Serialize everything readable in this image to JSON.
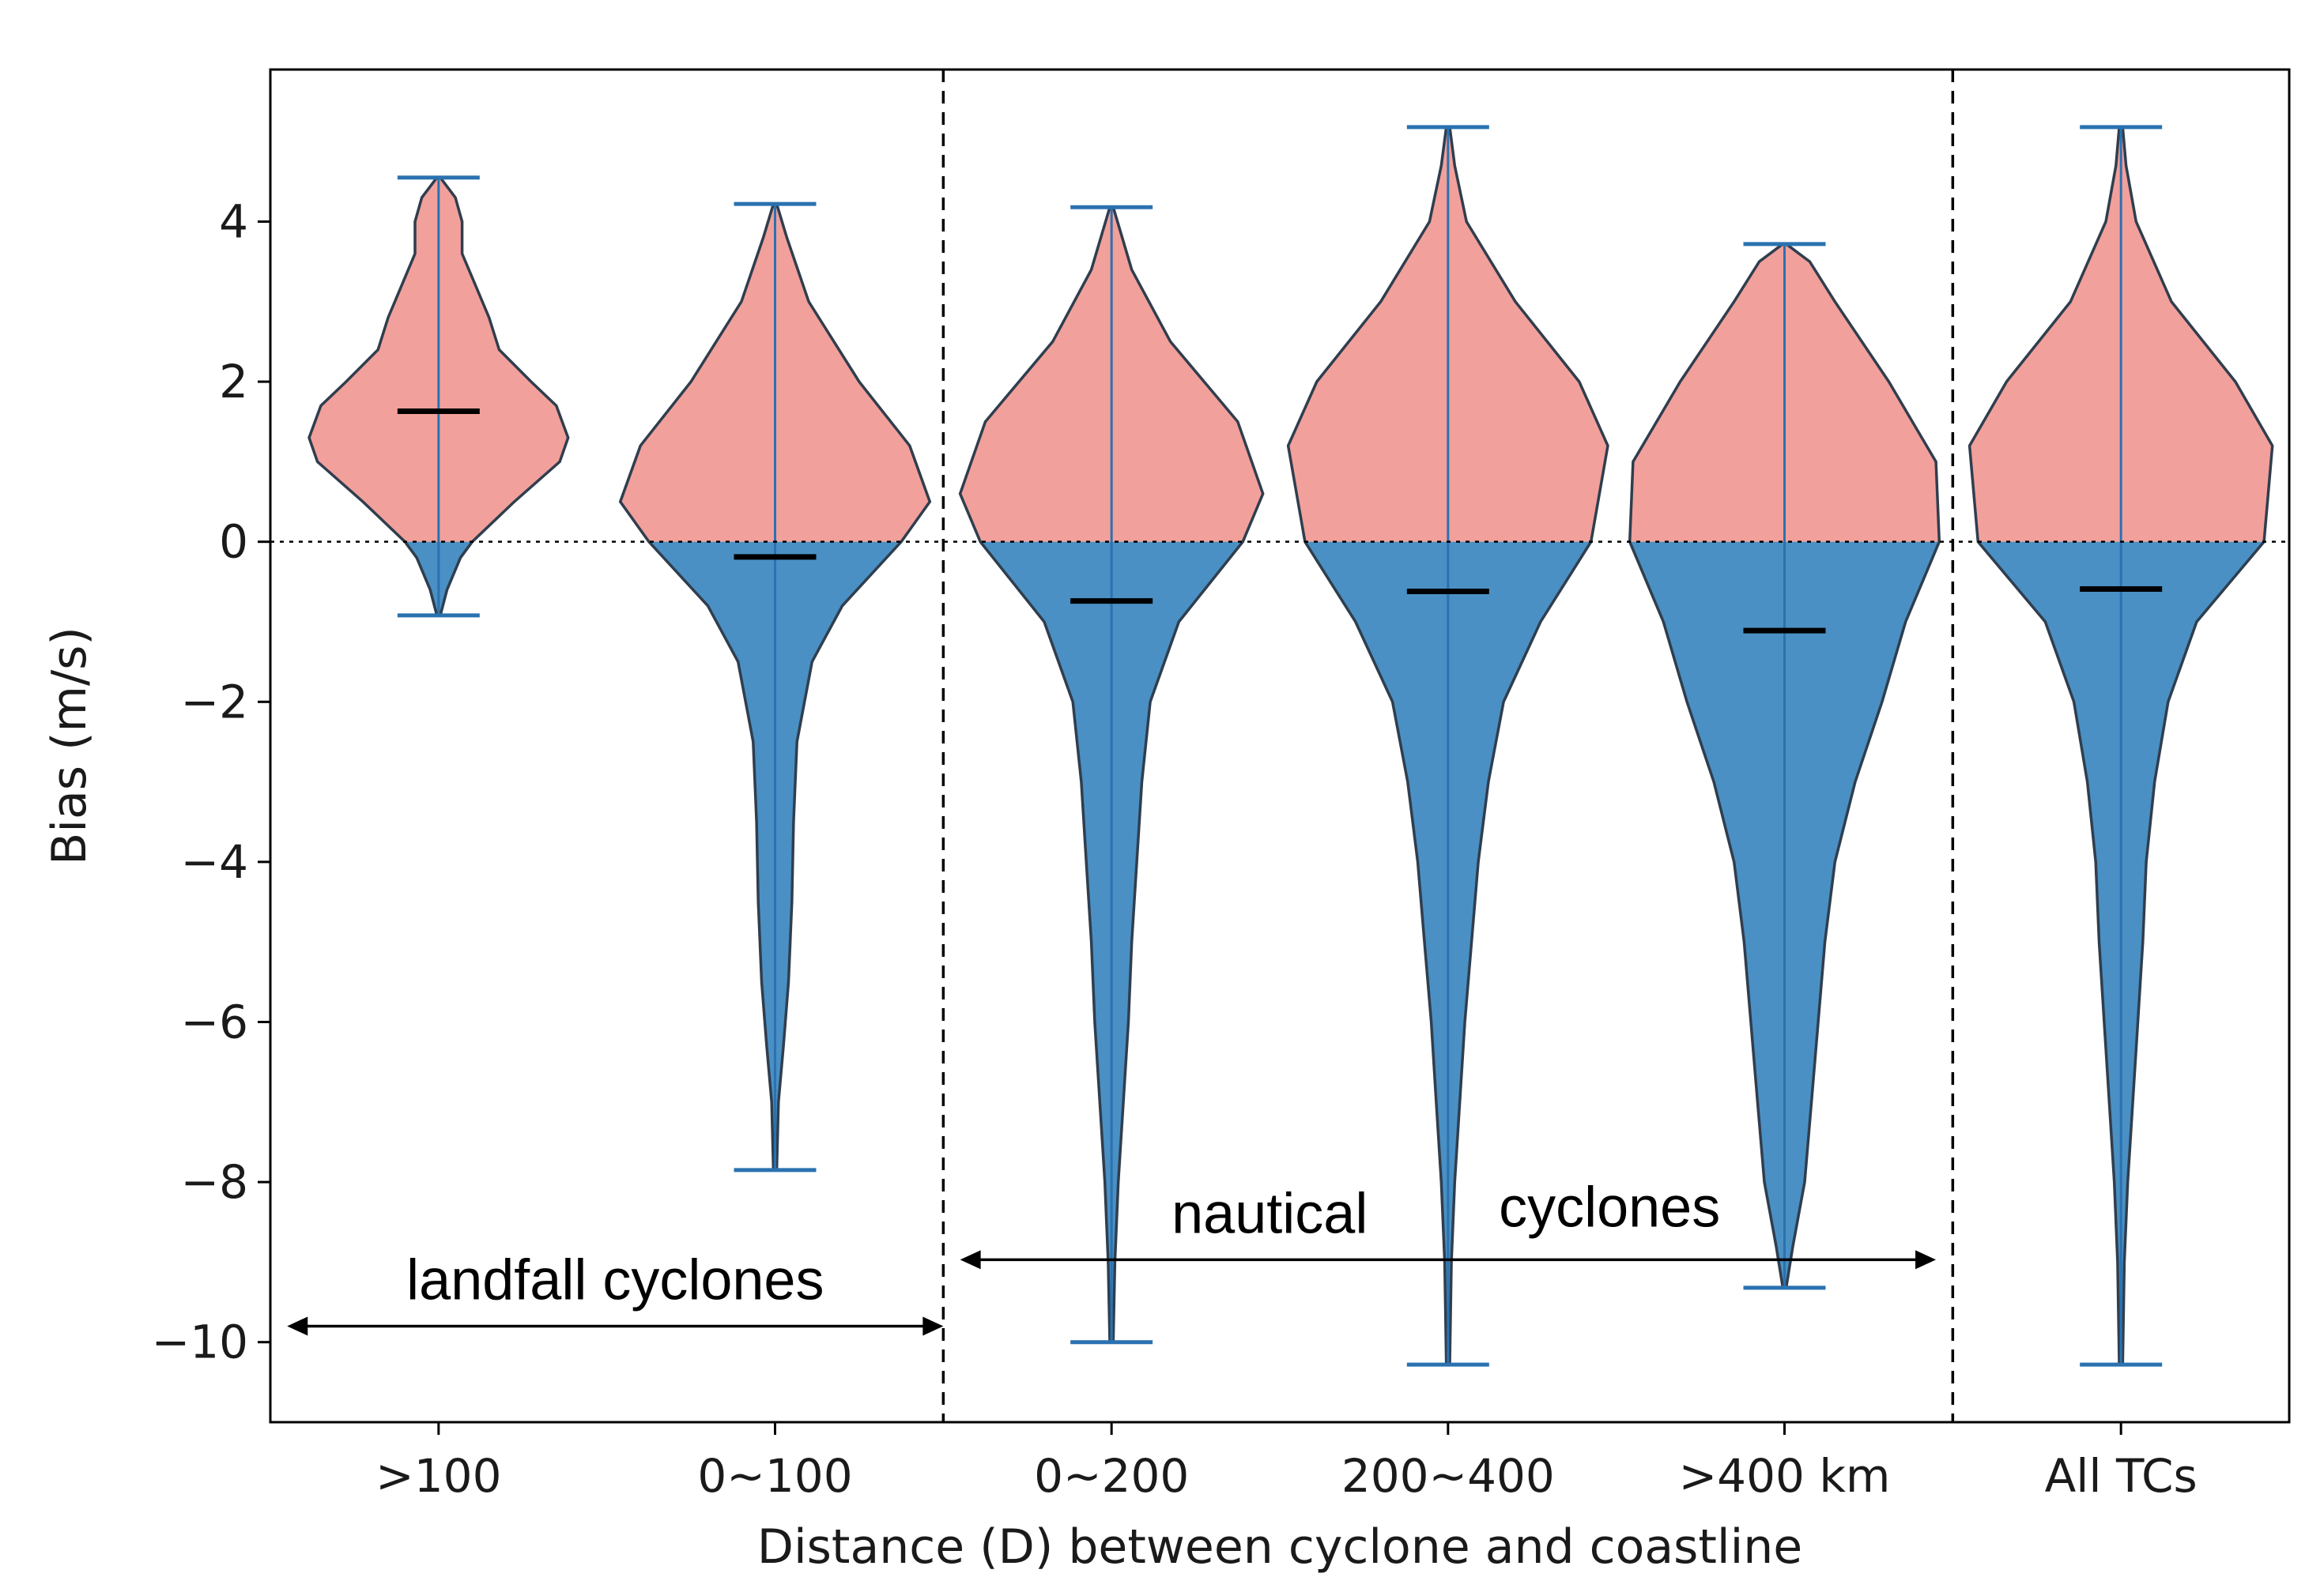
{
  "chart_data": {
    "type": "violin",
    "title": "",
    "xlabel": "Distance (D) between cyclone and coastline",
    "ylabel": "Bias (m/s)",
    "ylim": [
      -11,
      5.9
    ],
    "yticks": [
      4,
      2,
      0,
      -2,
      -4,
      -6,
      -8,
      -10
    ],
    "ytick_labels": [
      "4",
      "2",
      "0",
      "−2",
      "−4",
      "−6",
      "−8",
      "−10"
    ],
    "categories": [
      ">100",
      "0~100",
      "0~200",
      "200~400",
      ">400 km",
      "All TCs"
    ],
    "colors": {
      "positive": "#f2a09b",
      "negative": "#4a90c4",
      "edge": "#2f3e4e",
      "whisker": "#2a72b0",
      "mean": "#000000"
    },
    "violins": [
      {
        "category": ">100",
        "min": -0.92,
        "max": 4.55,
        "mean": 1.63,
        "profile": [
          [
            -0.92,
            0.01
          ],
          [
            -0.6,
            0.05
          ],
          [
            -0.2,
            0.13
          ],
          [
            0.0,
            0.2
          ],
          [
            0.5,
            0.45
          ],
          [
            1.0,
            0.72
          ],
          [
            1.3,
            0.77
          ],
          [
            1.7,
            0.7
          ],
          [
            2.0,
            0.55
          ],
          [
            2.4,
            0.36
          ],
          [
            2.8,
            0.3
          ],
          [
            3.2,
            0.22
          ],
          [
            3.6,
            0.14
          ],
          [
            4.0,
            0.14
          ],
          [
            4.3,
            0.1
          ],
          [
            4.55,
            0.01
          ]
        ]
      },
      {
        "category": "0~100",
        "min": -7.85,
        "max": 4.22,
        "mean": -0.19,
        "profile": [
          [
            -7.85,
            0.01
          ],
          [
            -7.0,
            0.02
          ],
          [
            -6.3,
            0.05
          ],
          [
            -5.5,
            0.08
          ],
          [
            -4.5,
            0.1
          ],
          [
            -3.5,
            0.11
          ],
          [
            -2.5,
            0.13
          ],
          [
            -1.5,
            0.22
          ],
          [
            -0.8,
            0.4
          ],
          [
            0.0,
            0.75
          ],
          [
            0.5,
            0.92
          ],
          [
            1.2,
            0.8
          ],
          [
            2.0,
            0.5
          ],
          [
            3.0,
            0.2
          ],
          [
            3.8,
            0.07
          ],
          [
            4.22,
            0.01
          ]
        ]
      },
      {
        "category": "0~200",
        "min": -10.0,
        "max": 4.18,
        "mean": -0.74,
        "profile": [
          [
            -10.0,
            0.01
          ],
          [
            -9.0,
            0.02
          ],
          [
            -8.0,
            0.04
          ],
          [
            -7.0,
            0.07
          ],
          [
            -6.0,
            0.1
          ],
          [
            -5.0,
            0.12
          ],
          [
            -4.0,
            0.15
          ],
          [
            -3.0,
            0.18
          ],
          [
            -2.0,
            0.23
          ],
          [
            -1.0,
            0.4
          ],
          [
            0.0,
            0.78
          ],
          [
            0.6,
            0.9
          ],
          [
            1.5,
            0.75
          ],
          [
            2.5,
            0.35
          ],
          [
            3.4,
            0.12
          ],
          [
            4.18,
            0.01
          ]
        ]
      },
      {
        "category": "200~400",
        "min": -10.28,
        "max": 5.18,
        "mean": -0.62,
        "profile": [
          [
            -10.28,
            0.01
          ],
          [
            -9.0,
            0.02
          ],
          [
            -8.0,
            0.04
          ],
          [
            -7.0,
            0.07
          ],
          [
            -6.0,
            0.1
          ],
          [
            -5.0,
            0.14
          ],
          [
            -4.0,
            0.18
          ],
          [
            -3.0,
            0.24
          ],
          [
            -2.0,
            0.33
          ],
          [
            -1.0,
            0.55
          ],
          [
            0.0,
            0.85
          ],
          [
            1.2,
            0.95
          ],
          [
            2.0,
            0.78
          ],
          [
            3.0,
            0.4
          ],
          [
            4.0,
            0.11
          ],
          [
            4.7,
            0.04
          ],
          [
            5.18,
            0.01
          ]
        ]
      },
      {
        "category": ">400 km",
        "min": -9.32,
        "max": 3.72,
        "mean": -1.11,
        "profile": [
          [
            -9.32,
            0.01
          ],
          [
            -8.8,
            0.05
          ],
          [
            -8.0,
            0.12
          ],
          [
            -7.0,
            0.16
          ],
          [
            -6.0,
            0.2
          ],
          [
            -5.0,
            0.24
          ],
          [
            -4.0,
            0.3
          ],
          [
            -3.0,
            0.42
          ],
          [
            -2.0,
            0.58
          ],
          [
            -1.0,
            0.72
          ],
          [
            0.0,
            0.92
          ],
          [
            1.0,
            0.9
          ],
          [
            2.0,
            0.62
          ],
          [
            3.0,
            0.3
          ],
          [
            3.5,
            0.15
          ],
          [
            3.72,
            0.01
          ]
        ]
      },
      {
        "category": "All TCs",
        "min": -10.28,
        "max": 5.18,
        "mean": -0.59,
        "profile": [
          [
            -10.28,
            0.01
          ],
          [
            -9.0,
            0.02
          ],
          [
            -8.0,
            0.04
          ],
          [
            -7.0,
            0.07
          ],
          [
            -6.0,
            0.1
          ],
          [
            -5.0,
            0.13
          ],
          [
            -4.0,
            0.15
          ],
          [
            -3.0,
            0.2
          ],
          [
            -2.0,
            0.28
          ],
          [
            -1.0,
            0.45
          ],
          [
            0.0,
            0.85
          ],
          [
            1.2,
            0.9
          ],
          [
            2.0,
            0.68
          ],
          [
            3.0,
            0.3
          ],
          [
            4.0,
            0.09
          ],
          [
            4.7,
            0.03
          ],
          [
            5.18,
            0.01
          ]
        ]
      }
    ],
    "reference_line": {
      "y": 0,
      "style": "dotted"
    },
    "separators_after_category_index": [
      1,
      4
    ],
    "annotations": {
      "landfall": {
        "text": "landfall cyclones",
        "arrow_y": -9.8,
        "arrow_x_span": [
          0.55,
          2.5
        ]
      },
      "nautical_a": {
        "text": "nautical"
      },
      "nautical_b": {
        "text": "cyclones"
      },
      "nautical_arrow": {
        "arrow_y": -8.97,
        "arrow_x_span": [
          2.55,
          5.45
        ]
      }
    }
  }
}
